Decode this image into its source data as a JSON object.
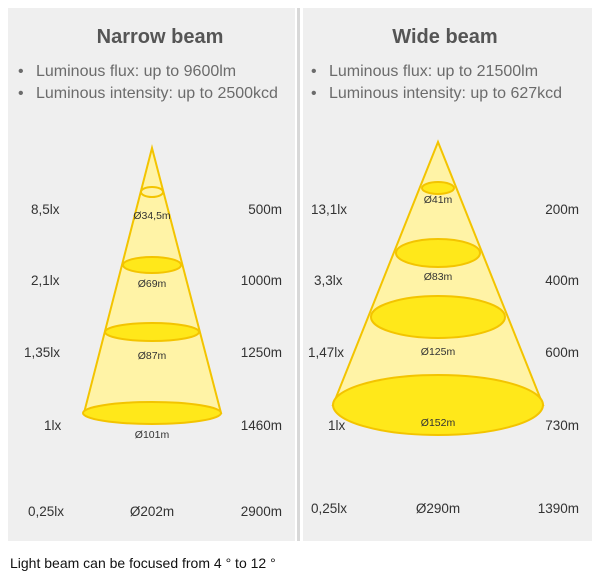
{
  "narrow": {
    "title": "Narrow beam",
    "bullets": [
      "Luminous flux: up to 9600lm",
      "Luminous intensity: up to 2500kcd"
    ],
    "lux": [
      "8,5lx",
      "2,1lx",
      "1,35lx",
      "1lx",
      "0,25lx"
    ],
    "distance": [
      "500m",
      "1000m",
      "1250m",
      "1460m",
      "2900m"
    ],
    "diameter": [
      "Ø34,5m",
      "Ø69m",
      "Ø87m",
      "Ø101m",
      "Ø202m"
    ]
  },
  "wide": {
    "title": "Wide beam",
    "bullets": [
      "Luminous flux: up to 21500lm",
      "Luminous intensity: up to 627kcd"
    ],
    "lux": [
      "13,1lx",
      "3,3lx",
      "1,47lx",
      "1lx",
      "0,25lx"
    ],
    "distance": [
      "200m",
      "400m",
      "600m",
      "730m",
      "1390m"
    ],
    "diameter": [
      "Ø41m",
      "Ø83m",
      "Ø125m",
      "Ø152m",
      "Ø290m"
    ]
  },
  "caption": "Light beam can be focused from 4 ° to 12 °",
  "colors": {
    "beam_fill": "#fff3a6",
    "ellipse_fill": "#ffe81a",
    "outline": "#f3c400",
    "panel": "#efefef"
  }
}
